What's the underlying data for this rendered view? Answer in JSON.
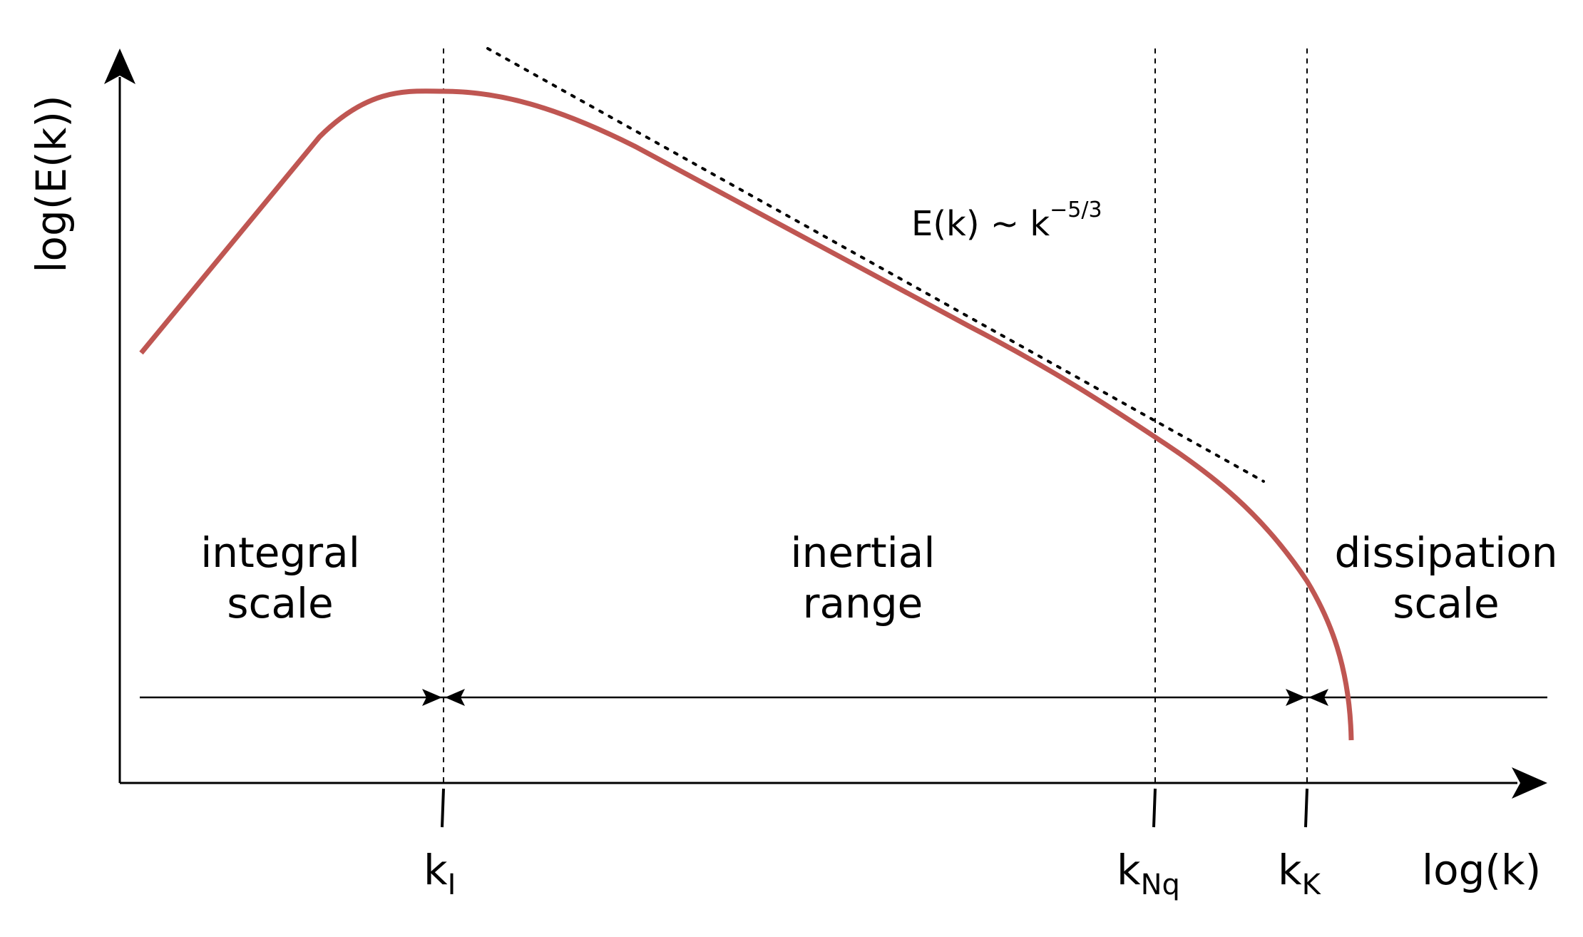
{
  "diagram": {
    "y_axis_label": "log(E(k))",
    "x_axis_label": "log(k)",
    "formula": {
      "base": "E(k) ∼ k",
      "exponent": "−5/3"
    },
    "regions": [
      {
        "line1": "integral",
        "line2": "scale"
      },
      {
        "line1": "inertial",
        "line2": "range"
      },
      {
        "line1": "dissipation",
        "line2": "scale"
      }
    ],
    "ticks": [
      {
        "main": "k",
        "sub": "I"
      },
      {
        "main": "k",
        "sub": "Nq"
      },
      {
        "main": "k",
        "sub": "K"
      }
    ],
    "colors": {
      "spectrum_curve": "#bf5652",
      "axes": "#000000"
    }
  }
}
